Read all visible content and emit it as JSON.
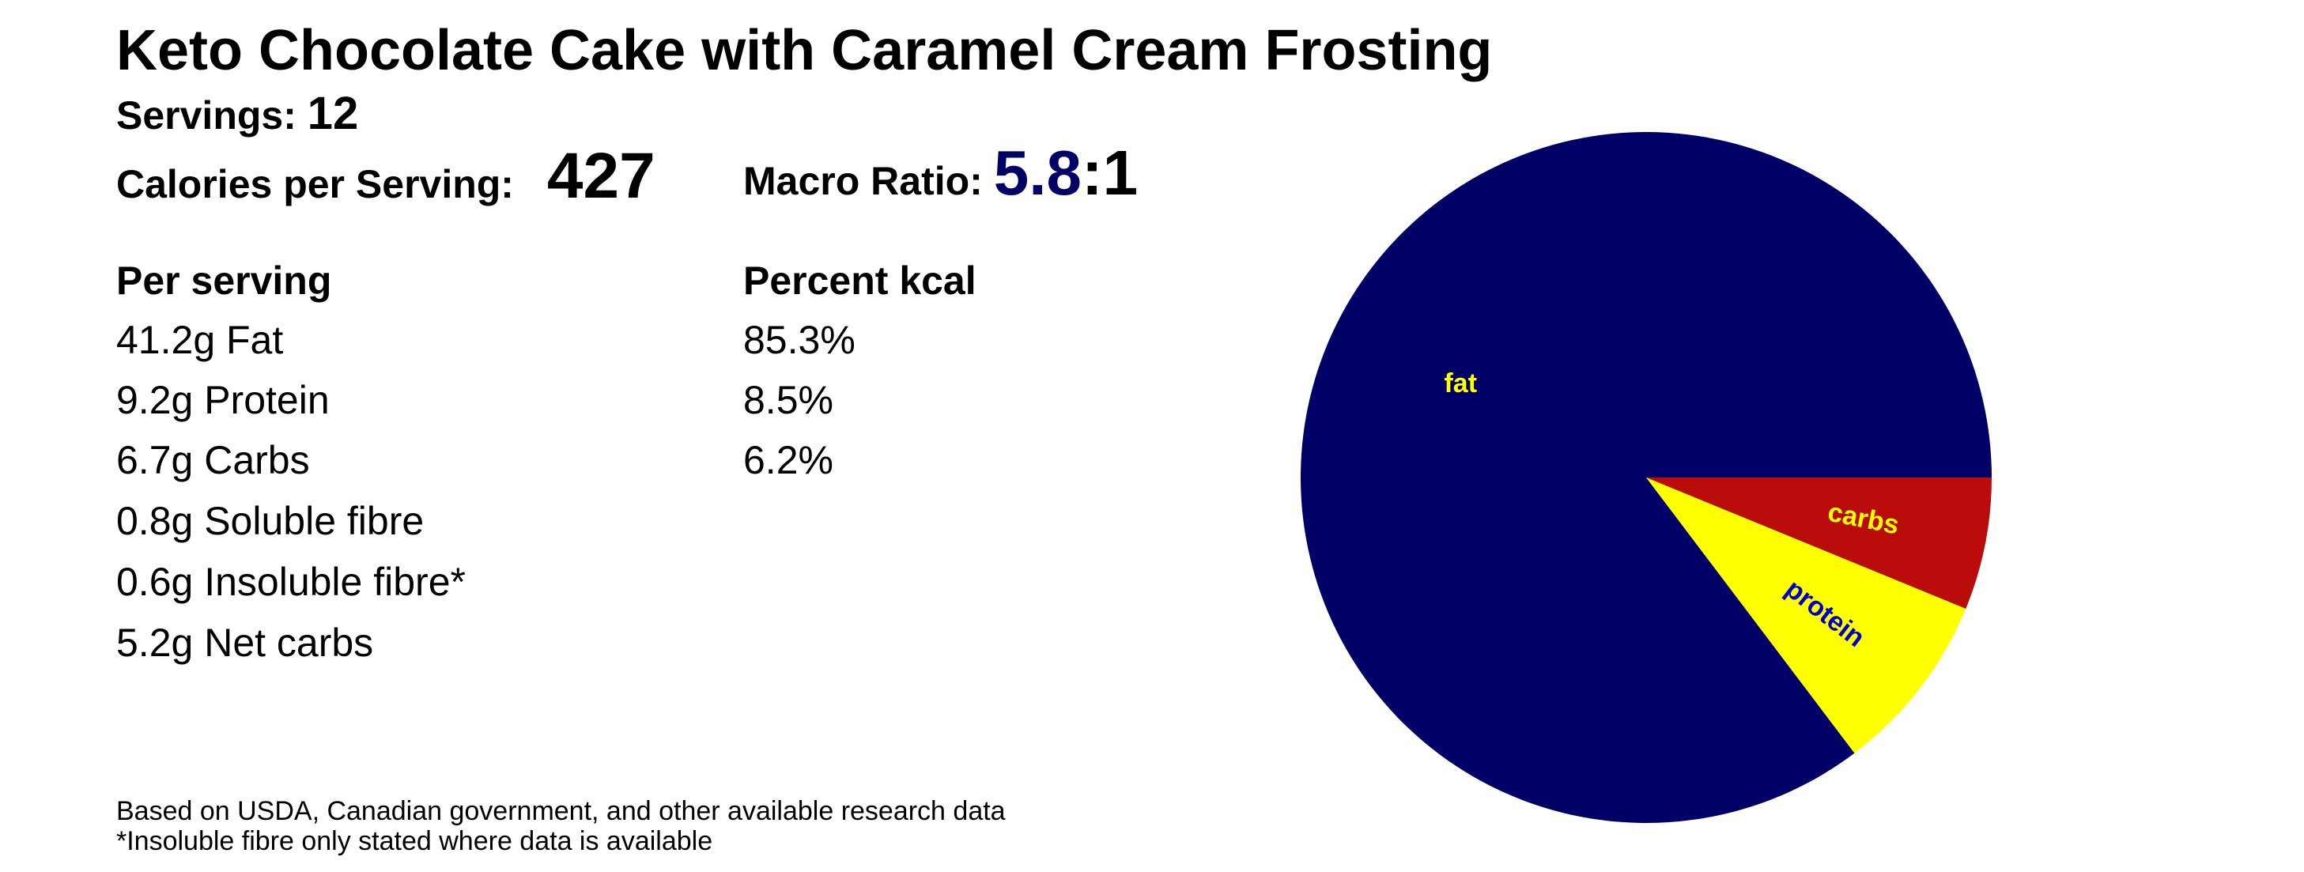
{
  "title": "Keto Chocolate Cake with Caramel Cream Frosting",
  "servings": {
    "label": "Servings:",
    "value": "12"
  },
  "calories": {
    "label": "Calories per Serving:",
    "value": "427"
  },
  "macro_ratio": {
    "label": "Macro Ratio:",
    "value": "5.8",
    "suffix": ":1",
    "value_color": "#000066"
  },
  "per_serving": {
    "heading": "Per serving",
    "rows": [
      "41.2g Fat",
      "9.2g Protein",
      "6.7g Carbs",
      "0.8g Soluble fibre",
      "0.6g Insoluble fibre*",
      "5.2g Net carbs"
    ]
  },
  "percent_kcal": {
    "heading": "Percent kcal",
    "rows": [
      "85.3%",
      "8.5%",
      "6.2%"
    ]
  },
  "footnotes": [
    "Based on USDA, Canadian government, and other available research data",
    "*Insoluble fibre only stated where data is available"
  ],
  "chart_data": {
    "type": "pie",
    "slices": [
      {
        "label": "fat",
        "value": 85.3,
        "color": "#000066",
        "label_color": "#ffff00"
      },
      {
        "label": "protein",
        "value": 8.5,
        "color": "#ffff00",
        "label_color": "#0000cc"
      },
      {
        "label": "carbs",
        "value": 6.2,
        "color": "#bb0c0c",
        "label_color": "#ffff00"
      }
    ],
    "start": "3 o'clock",
    "direction": "counterclockwise"
  }
}
